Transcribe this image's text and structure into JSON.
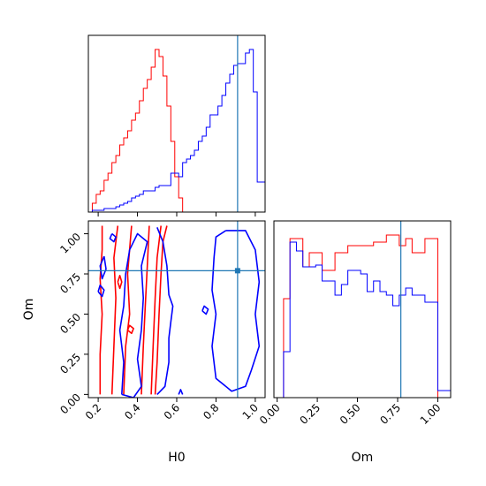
{
  "chart_data": {
    "type": "corner",
    "colors": {
      "series_a": "#ff0000",
      "series_b": "#0000ff",
      "truth": "#1f77b4"
    },
    "truth": {
      "H0": 0.91,
      "Om": 0.77
    },
    "axis_labels": {
      "H0": "H0",
      "Om": "Om"
    },
    "ticks": {
      "H0": [
        "0.2",
        "0.4",
        "0.6",
        "0.8",
        "1.0"
      ],
      "Om_bottom": [
        "0.00",
        "0.25",
        "0.50",
        "0.75",
        "1.00"
      ],
      "Om_left": [
        "0.00",
        "0.25",
        "0.50",
        "0.75",
        "1.00"
      ]
    },
    "ranges": {
      "H0": [
        0.15,
        1.05
      ],
      "Om": [
        -0.02,
        1.08
      ]
    },
    "hist_H0": {
      "edges": [
        0.15,
        0.17,
        0.19,
        0.21,
        0.23,
        0.25,
        0.27,
        0.29,
        0.31,
        0.33,
        0.35,
        0.37,
        0.39,
        0.41,
        0.43,
        0.45,
        0.47,
        0.49,
        0.51,
        0.53,
        0.55,
        0.57,
        0.59,
        0.61,
        0.63,
        0.65,
        0.67,
        0.69,
        0.71,
        0.73,
        0.75,
        0.77,
        0.79,
        0.81,
        0.83,
        0.85,
        0.87,
        0.89,
        0.91,
        0.93,
        0.95,
        0.97,
        0.99,
        1.01,
        1.03,
        1.05
      ],
      "series_a": [
        0,
        0.05,
        0.1,
        0.12,
        0.18,
        0.22,
        0.28,
        0.32,
        0.38,
        0.42,
        0.46,
        0.52,
        0.56,
        0.63,
        0.7,
        0.75,
        0.82,
        0.92,
        0.88,
        0.77,
        0.6,
        0.4,
        0.2,
        0.08,
        0,
        0,
        0,
        0,
        0,
        0,
        0,
        0,
        0,
        0,
        0,
        0,
        0,
        0,
        0,
        0,
        0,
        0,
        0,
        0,
        0
      ],
      "series_b": [
        0,
        0.01,
        0.01,
        0.01,
        0.02,
        0.02,
        0.02,
        0.03,
        0.04,
        0.05,
        0.06,
        0.08,
        0.09,
        0.1,
        0.12,
        0.12,
        0.12,
        0.14,
        0.15,
        0.15,
        0.15,
        0.22,
        0.22,
        0.2,
        0.28,
        0.3,
        0.32,
        0.35,
        0.4,
        0.43,
        0.48,
        0.55,
        0.55,
        0.6,
        0.66,
        0.73,
        0.78,
        0.83,
        0.84,
        0.84,
        0.9,
        0.92,
        0.68,
        0.17,
        0.17
      ]
    },
    "hist_Om": {
      "edges": [
        -0.02,
        0.04,
        0.08,
        0.12,
        0.16,
        0.2,
        0.24,
        0.28,
        0.32,
        0.36,
        0.4,
        0.44,
        0.48,
        0.52,
        0.56,
        0.6,
        0.64,
        0.68,
        0.72,
        0.76,
        0.8,
        0.84,
        0.88,
        0.92,
        0.96,
        1.0,
        1.04,
        1.08
      ],
      "series_a": [
        0,
        0.56,
        0.9,
        0.9,
        0.74,
        0.82,
        0.82,
        0.72,
        0.72,
        0.82,
        0.82,
        0.86,
        0.86,
        0.86,
        0.86,
        0.88,
        0.88,
        0.92,
        0.92,
        0.86,
        0.9,
        0.82,
        0.82,
        0.9,
        0.9,
        0.0,
        0.0
      ],
      "series_b": [
        0,
        0.26,
        0.88,
        0.83,
        0.74,
        0.74,
        0.75,
        0.66,
        0.66,
        0.58,
        0.64,
        0.72,
        0.72,
        0.7,
        0.6,
        0.66,
        0.6,
        0.58,
        0.52,
        0.58,
        0.62,
        0.58,
        0.58,
        0.54,
        0.54,
        0.04,
        0.04
      ]
    },
    "contours": {
      "series_a": [
        [
          [
            0.21,
            0.0
          ],
          [
            0.21,
            0.25
          ],
          [
            0.22,
            0.5
          ],
          [
            0.21,
            0.72
          ],
          [
            0.22,
            0.9
          ],
          [
            0.22,
            1.05
          ]
        ],
        [
          [
            0.27,
            0.0
          ],
          [
            0.28,
            0.3
          ],
          [
            0.29,
            0.6
          ],
          [
            0.28,
            0.85
          ],
          [
            0.3,
            1.05
          ]
        ],
        [
          [
            0.33,
            0.0
          ],
          [
            0.34,
            0.3
          ],
          [
            0.36,
            0.5
          ],
          [
            0.35,
            0.75
          ],
          [
            0.37,
            1.05
          ]
        ],
        [
          [
            0.42,
            0.0
          ],
          [
            0.43,
            0.3
          ],
          [
            0.44,
            0.55
          ],
          [
            0.45,
            0.8
          ],
          [
            0.46,
            1.05
          ]
        ],
        [
          [
            0.47,
            0.0
          ],
          [
            0.48,
            0.3
          ],
          [
            0.49,
            0.6
          ],
          [
            0.5,
            0.85
          ],
          [
            0.52,
            1.05
          ]
        ],
        [
          [
            0.49,
            0.0
          ],
          [
            0.5,
            0.2
          ],
          [
            0.51,
            0.5
          ],
          [
            0.52,
            0.75
          ],
          [
            0.53,
            0.95
          ],
          [
            0.55,
            1.05
          ]
        ],
        [
          [
            0.3,
            0.7
          ],
          [
            0.31,
            0.66
          ],
          [
            0.32,
            0.7
          ],
          [
            0.31,
            0.74
          ],
          [
            0.3,
            0.7
          ]
        ],
        [
          [
            0.35,
            0.4
          ],
          [
            0.37,
            0.38
          ],
          [
            0.38,
            0.41
          ],
          [
            0.36,
            0.43
          ],
          [
            0.35,
            0.4
          ]
        ]
      ],
      "series_b": [
        [
          [
            0.23,
            0.86
          ],
          [
            0.21,
            0.8
          ],
          [
            0.22,
            0.72
          ],
          [
            0.24,
            0.78
          ],
          [
            0.23,
            0.86
          ]
        ],
        [
          [
            0.2,
            0.64
          ],
          [
            0.22,
            0.61
          ],
          [
            0.23,
            0.65
          ],
          [
            0.21,
            0.68
          ],
          [
            0.2,
            0.64
          ]
        ],
        [
          [
            0.32,
            0.0
          ],
          [
            0.33,
            0.2
          ],
          [
            0.31,
            0.4
          ],
          [
            0.33,
            0.55
          ],
          [
            0.34,
            0.75
          ],
          [
            0.36,
            0.9
          ],
          [
            0.4,
            1.0
          ],
          [
            0.45,
            0.95
          ],
          [
            0.42,
            0.8
          ],
          [
            0.43,
            0.6
          ],
          [
            0.42,
            0.4
          ],
          [
            0.4,
            0.22
          ],
          [
            0.42,
            0.05
          ],
          [
            0.38,
            -0.02
          ],
          [
            0.32,
            0.0
          ]
        ],
        [
          [
            0.5,
            1.04
          ],
          [
            0.53,
            0.95
          ],
          [
            0.55,
            0.8
          ],
          [
            0.56,
            0.62
          ],
          [
            0.58,
            0.55
          ],
          [
            0.57,
            0.45
          ],
          [
            0.56,
            0.35
          ],
          [
            0.56,
            0.2
          ],
          [
            0.54,
            0.05
          ],
          [
            0.5,
            0.0
          ]
        ],
        [
          [
            0.85,
            1.02
          ],
          [
            0.8,
            0.98
          ],
          [
            0.79,
            0.85
          ],
          [
            0.78,
            0.65
          ],
          [
            0.8,
            0.5
          ],
          [
            0.78,
            0.3
          ],
          [
            0.8,
            0.1
          ],
          [
            0.88,
            0.02
          ],
          [
            0.95,
            0.05
          ],
          [
            0.98,
            0.15
          ],
          [
            1.02,
            0.3
          ],
          [
            1.0,
            0.5
          ],
          [
            1.02,
            0.7
          ],
          [
            1.0,
            0.9
          ],
          [
            0.95,
            1.02
          ],
          [
            0.85,
            1.02
          ]
        ],
        [
          [
            0.27,
            1.0
          ],
          [
            0.29,
            0.98
          ],
          [
            0.28,
            0.95
          ],
          [
            0.26,
            0.97
          ],
          [
            0.27,
            1.0
          ]
        ],
        [
          [
            0.61,
            0.0
          ],
          [
            0.62,
            0.03
          ],
          [
            0.63,
            0.0
          ]
        ],
        [
          [
            0.73,
            0.52
          ],
          [
            0.75,
            0.5
          ],
          [
            0.76,
            0.53
          ],
          [
            0.74,
            0.55
          ],
          [
            0.73,
            0.52
          ]
        ]
      ]
    }
  }
}
